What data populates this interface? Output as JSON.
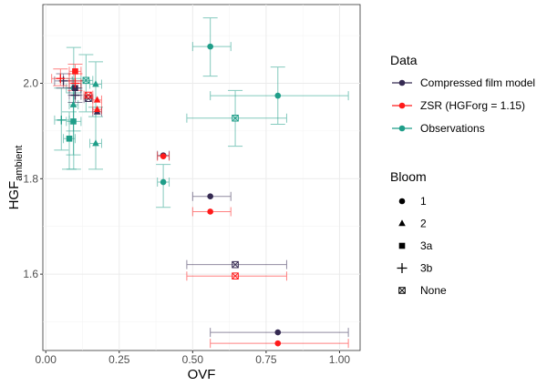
{
  "chart_data": {
    "type": "scatter",
    "xlabel": "OVF",
    "ylabel_main": "HGF",
    "ylabel_sub": "ambient",
    "xlim": [
      -0.01,
      1.07
    ],
    "ylim": [
      1.44,
      2.165
    ],
    "xticks": [
      0,
      0.25,
      0.5,
      0.75,
      1.0
    ],
    "xtick_labels": [
      "0.00",
      "0.25",
      "0.50",
      "0.75",
      "1.00"
    ],
    "yticks": [
      1.6,
      1.8,
      2.0
    ],
    "ytick_labels": [
      "1.6",
      "1.8",
      "2.0"
    ],
    "grid": true,
    "legend_placement": "right",
    "legend_data_title": "Data",
    "legend_bloom_title": "Bloom",
    "series": [
      {
        "name": "Compressed film model",
        "color": "#352a52"
      },
      {
        "name": "ZSR (HGForg = 1.15)",
        "color": "#ff1a1a"
      },
      {
        "name": "Observations",
        "color": "#1f9e89"
      }
    ],
    "blooms": [
      {
        "name": "1",
        "shape": "circle"
      },
      {
        "name": "2",
        "shape": "triangle"
      },
      {
        "name": "3a",
        "shape": "square"
      },
      {
        "name": "3b",
        "shape": "plus"
      },
      {
        "name": "None",
        "shape": "boxx"
      }
    ],
    "points": [
      {
        "s": 2,
        "b": "1",
        "x": 0.56,
        "y": 2.077,
        "xmin": 0.5,
        "xmax": 0.63,
        "ymin": 2.015,
        "ymax": 2.137
      },
      {
        "s": 2,
        "b": "1",
        "x": 0.79,
        "y": 1.974,
        "xmin": 0.56,
        "xmax": 1.03,
        "ymin": 1.914,
        "ymax": 2.034
      },
      {
        "s": 2,
        "b": "None",
        "x": 0.645,
        "y": 1.927,
        "xmin": 0.48,
        "xmax": 0.82,
        "ymin": 1.868,
        "ymax": 1.985
      },
      {
        "s": 2,
        "b": "1",
        "x": 0.4,
        "y": 1.793,
        "xmin": 0.38,
        "xmax": 0.42,
        "ymin": 1.74,
        "ymax": 1.83
      },
      {
        "s": 2,
        "b": "1",
        "x": 0.095,
        "y": 1.99,
        "xmin": 0.07,
        "xmax": 0.12,
        "ymin": 1.82,
        "ymax": 2.075
      },
      {
        "s": 2,
        "b": "3b",
        "x": 0.053,
        "y": 1.923,
        "xmin": 0.03,
        "xmax": 0.08,
        "ymin": 1.86,
        "ymax": 1.99
      },
      {
        "s": 2,
        "b": "3a",
        "x": 0.08,
        "y": 1.884,
        "xmin": 0.06,
        "xmax": 0.1,
        "ymin": 1.82,
        "ymax": 1.94
      },
      {
        "s": 2,
        "b": "3a",
        "x": 0.094,
        "y": 1.92,
        "xmin": 0.07,
        "xmax": 0.12,
        "ymin": 1.85,
        "ymax": 1.98
      },
      {
        "s": 2,
        "b": "2",
        "x": 0.094,
        "y": 1.955,
        "xmin": 0.08,
        "xmax": 0.11,
        "ymin": 1.9,
        "ymax": 2.01
      },
      {
        "s": 2,
        "b": "None",
        "x": 0.137,
        "y": 2.006,
        "xmin": 0.12,
        "xmax": 0.16,
        "ymin": 1.94,
        "ymax": 2.06
      },
      {
        "s": 2,
        "b": "2",
        "x": 0.17,
        "y": 1.998,
        "xmin": 0.15,
        "xmax": 0.19,
        "ymin": 1.93,
        "ymax": 2.045
      },
      {
        "s": 2,
        "b": "2",
        "x": 0.17,
        "y": 1.874,
        "xmin": 0.15,
        "xmax": 0.19,
        "ymin": 1.82,
        "ymax": 1.95
      },
      {
        "s": 0,
        "b": "1",
        "x": 0.56,
        "y": 1.763,
        "xmin": 0.5,
        "xmax": 0.63,
        "ymin": 1.763,
        "ymax": 1.763
      },
      {
        "s": 0,
        "b": "None",
        "x": 0.645,
        "y": 1.62,
        "xmin": 0.48,
        "xmax": 0.82,
        "ymin": 1.62,
        "ymax": 1.62
      },
      {
        "s": 0,
        "b": "1",
        "x": 0.79,
        "y": 1.478,
        "xmin": 0.56,
        "xmax": 1.03,
        "ymin": 1.478,
        "ymax": 1.478
      },
      {
        "s": 0,
        "b": "1",
        "x": 0.4,
        "y": 1.849,
        "xmin": 0.38,
        "xmax": 0.42,
        "ymin": 1.849,
        "ymax": 1.849
      },
      {
        "s": 0,
        "b": "3b",
        "x": 0.06,
        "y": 2.005,
        "xmin": 0.03,
        "xmax": 0.09,
        "ymin": 1.99,
        "ymax": 2.02
      },
      {
        "s": 0,
        "b": "3a",
        "x": 0.1,
        "y": 1.99,
        "xmin": 0.08,
        "xmax": 0.12,
        "ymin": 1.975,
        "ymax": 2.005
      },
      {
        "s": 0,
        "b": "None",
        "x": 0.145,
        "y": 1.968,
        "xmin": 0.13,
        "xmax": 0.16,
        "ymin": 1.968,
        "ymax": 1.968
      },
      {
        "s": 0,
        "b": "2",
        "x": 0.175,
        "y": 1.94,
        "xmin": 0.16,
        "xmax": 0.19,
        "ymin": 1.94,
        "ymax": 1.94
      },
      {
        "s": 0,
        "b": "3b",
        "x": 0.1,
        "y": 1.975,
        "xmin": 0.08,
        "xmax": 0.12,
        "ymin": 1.96,
        "ymax": 1.99
      },
      {
        "s": 1,
        "b": "1",
        "x": 0.56,
        "y": 1.731,
        "xmin": 0.5,
        "xmax": 0.63,
        "ymin": 1.731,
        "ymax": 1.731
      },
      {
        "s": 1,
        "b": "None",
        "x": 0.645,
        "y": 1.596,
        "xmin": 0.48,
        "xmax": 0.82,
        "ymin": 1.596,
        "ymax": 1.596
      },
      {
        "s": 1,
        "b": "1",
        "x": 0.79,
        "y": 1.455,
        "xmin": 0.56,
        "xmax": 1.03,
        "ymin": 1.455,
        "ymax": 1.455
      },
      {
        "s": 1,
        "b": "1",
        "x": 0.4,
        "y": 1.847,
        "xmin": 0.38,
        "xmax": 0.42,
        "ymin": 1.847,
        "ymax": 1.847
      },
      {
        "s": 1,
        "b": "3b",
        "x": 0.05,
        "y": 2.01,
        "xmin": 0.02,
        "xmax": 0.08,
        "ymin": 1.995,
        "ymax": 2.03
      },
      {
        "s": 1,
        "b": "3a",
        "x": 0.1,
        "y": 2.025,
        "xmin": 0.08,
        "xmax": 0.12,
        "ymin": 2.005,
        "ymax": 2.04
      },
      {
        "s": 1,
        "b": "3b",
        "x": 0.1,
        "y": 2.0,
        "xmin": 0.08,
        "xmax": 0.12,
        "ymin": 1.985,
        "ymax": 2.02
      },
      {
        "s": 1,
        "b": "None",
        "x": 0.145,
        "y": 1.975,
        "xmin": 0.13,
        "xmax": 0.16,
        "ymin": 1.975,
        "ymax": 1.975
      },
      {
        "s": 1,
        "b": "2",
        "x": 0.175,
        "y": 1.965,
        "xmin": 0.16,
        "xmax": 0.19,
        "ymin": 1.965,
        "ymax": 1.965
      },
      {
        "s": 1,
        "b": "2",
        "x": 0.175,
        "y": 1.945,
        "xmin": 0.16,
        "xmax": 0.19,
        "ymin": 1.945,
        "ymax": 1.945
      }
    ]
  }
}
